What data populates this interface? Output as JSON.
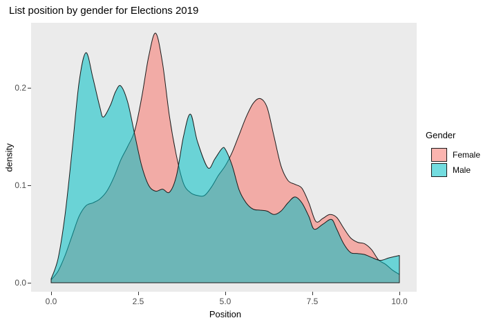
{
  "chart_data": {
    "type": "area",
    "subtype": "density",
    "title": "List position by gender for Elections 2019",
    "xlabel": "Position",
    "ylabel": "density",
    "x_ticks": [
      "0.0",
      "2.5",
      "5.0",
      "7.5",
      "10.0"
    ],
    "x_tick_values": [
      0,
      2.5,
      5,
      7.5,
      10
    ],
    "y_ticks": [
      "0.0",
      "0.1",
      "0.2"
    ],
    "y_tick_values": [
      0,
      0.1,
      0.2
    ],
    "xlim": [
      0,
      10
    ],
    "ylim": [
      0,
      0.26
    ],
    "grid": false,
    "panel_bg": "#EBEBEB",
    "outline_color": "#1A1A1A",
    "fill_alpha": 0.55,
    "legend": {
      "title": "Gender",
      "position": "right",
      "entries": [
        {
          "label": "Female",
          "color": "#F8766D"
        },
        {
          "label": "Male",
          "color": "#00BFC4"
        }
      ]
    },
    "series": [
      {
        "name": "Female",
        "color": "#F8766D",
        "points": [
          [
            0,
            0.003
          ],
          [
            0.2,
            0.012
          ],
          [
            0.4,
            0.028
          ],
          [
            0.6,
            0.048
          ],
          [
            0.8,
            0.068
          ],
          [
            1,
            0.079
          ],
          [
            1.2,
            0.082
          ],
          [
            1.4,
            0.086
          ],
          [
            1.6,
            0.094
          ],
          [
            1.8,
            0.108
          ],
          [
            2,
            0.126
          ],
          [
            2.2,
            0.14
          ],
          [
            2.4,
            0.156
          ],
          [
            2.6,
            0.19
          ],
          [
            2.8,
            0.232
          ],
          [
            3,
            0.256
          ],
          [
            3.2,
            0.225
          ],
          [
            3.4,
            0.17
          ],
          [
            3.6,
            0.13
          ],
          [
            3.8,
            0.102
          ],
          [
            4,
            0.0925
          ],
          [
            4.2,
            0.0895
          ],
          [
            4.4,
            0.0895
          ],
          [
            4.6,
            0.098
          ],
          [
            4.8,
            0.11
          ],
          [
            5,
            0.12
          ],
          [
            5.2,
            0.134
          ],
          [
            5.4,
            0.152
          ],
          [
            5.6,
            0.17
          ],
          [
            5.8,
            0.184
          ],
          [
            6,
            0.189
          ],
          [
            6.2,
            0.18
          ],
          [
            6.4,
            0.15
          ],
          [
            6.6,
            0.12
          ],
          [
            6.8,
            0.105
          ],
          [
            7,
            0.101
          ],
          [
            7.2,
            0.097
          ],
          [
            7.4,
            0.082
          ],
          [
            7.6,
            0.063
          ],
          [
            7.8,
            0.066
          ],
          [
            8,
            0.07
          ],
          [
            8.2,
            0.067
          ],
          [
            8.4,
            0.056
          ],
          [
            8.6,
            0.046
          ],
          [
            8.8,
            0.0415
          ],
          [
            9,
            0.04
          ],
          [
            9.2,
            0.034
          ],
          [
            9.4,
            0.0235
          ],
          [
            9.6,
            0.019
          ],
          [
            9.8,
            0.013
          ],
          [
            10,
            0.0085
          ]
        ]
      },
      {
        "name": "Male",
        "color": "#00BFC4",
        "points": [
          [
            0,
            0.004
          ],
          [
            0.2,
            0.025
          ],
          [
            0.4,
            0.07
          ],
          [
            0.6,
            0.135
          ],
          [
            0.8,
            0.205
          ],
          [
            1,
            0.236
          ],
          [
            1.2,
            0.21
          ],
          [
            1.4,
            0.18
          ],
          [
            1.5,
            0.17
          ],
          [
            1.7,
            0.182
          ],
          [
            1.85,
            0.196
          ],
          [
            2,
            0.202
          ],
          [
            2.2,
            0.185
          ],
          [
            2.4,
            0.152
          ],
          [
            2.6,
            0.12
          ],
          [
            2.8,
            0.1
          ],
          [
            3,
            0.094
          ],
          [
            3.2,
            0.096
          ],
          [
            3.4,
            0.093
          ],
          [
            3.6,
            0.11
          ],
          [
            3.8,
            0.15
          ],
          [
            4,
            0.173
          ],
          [
            4.2,
            0.145
          ],
          [
            4.5,
            0.118
          ],
          [
            4.7,
            0.127
          ],
          [
            4.9,
            0.1375
          ],
          [
            5,
            0.137
          ],
          [
            5.2,
            0.12
          ],
          [
            5.4,
            0.095
          ],
          [
            5.6,
            0.082
          ],
          [
            5.8,
            0.0755
          ],
          [
            6,
            0.0745
          ],
          [
            6.2,
            0.0735
          ],
          [
            6.4,
            0.07
          ],
          [
            6.6,
            0.0735
          ],
          [
            6.8,
            0.082
          ],
          [
            7,
            0.088
          ],
          [
            7.2,
            0.082
          ],
          [
            7.4,
            0.068
          ],
          [
            7.55,
            0.055
          ],
          [
            7.8,
            0.06
          ],
          [
            8.05,
            0.065
          ],
          [
            8.2,
            0.055
          ],
          [
            8.4,
            0.04
          ],
          [
            8.6,
            0.031
          ],
          [
            8.8,
            0.03
          ],
          [
            9,
            0.029
          ],
          [
            9.2,
            0.026
          ],
          [
            9.45,
            0.023
          ],
          [
            9.7,
            0.0255
          ],
          [
            10,
            0.028
          ]
        ]
      }
    ]
  }
}
